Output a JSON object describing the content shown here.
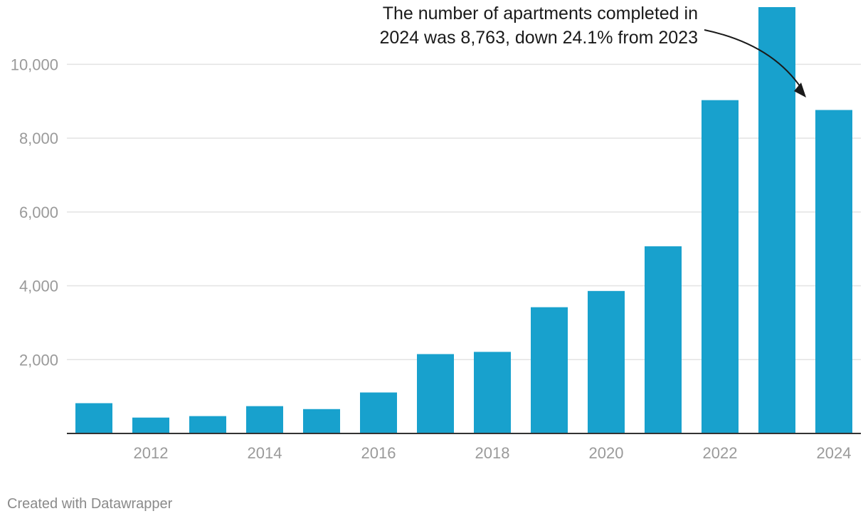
{
  "chart_data": {
    "type": "bar",
    "categories": [
      "2011",
      "2012",
      "2013",
      "2014",
      "2015",
      "2016",
      "2017",
      "2018",
      "2019",
      "2020",
      "2021",
      "2022",
      "2023",
      "2024"
    ],
    "values": [
      820,
      430,
      470,
      740,
      660,
      1110,
      2150,
      2210,
      3420,
      3860,
      5070,
      9030,
      11550,
      8763
    ],
    "x_tick_labels": [
      "2012",
      "2014",
      "2016",
      "2018",
      "2020",
      "2022",
      "2024"
    ],
    "y_ticks": [
      2000,
      4000,
      6000,
      8000,
      10000
    ],
    "y_tick_labels": [
      "2,000",
      "4,000",
      "6,000",
      "8,000",
      "10,000"
    ],
    "ylim": [
      0,
      11550
    ],
    "annotation": {
      "lines": [
        "The number of apartments completed in",
        "2024 was 8,763, down 24.1% from 2023"
      ],
      "target_category": "2024"
    },
    "title": "",
    "xlabel": "",
    "ylabel": "",
    "grid": true
  },
  "colors": {
    "bar": "#18a1cd",
    "grid": "#e3e3e3",
    "axis": "#333333",
    "tick_text": "#9a9a9a",
    "annotation_text": "#1a1a1a"
  },
  "footer": {
    "credit": "Created with Datawrapper"
  }
}
